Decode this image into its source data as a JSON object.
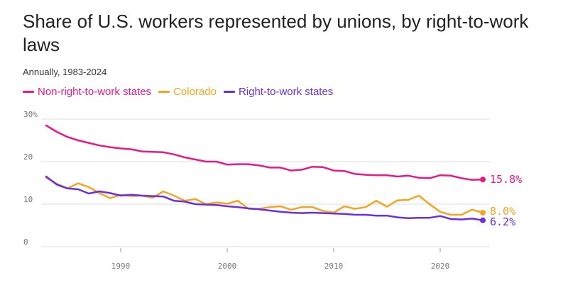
{
  "chart_data": {
    "type": "line",
    "title": "Share of U.S. workers represented by unions, by right-to-work laws",
    "subtitle": "Annually, 1983-2024",
    "xlabel": "",
    "ylabel": "",
    "xlim": [
      1983,
      2024
    ],
    "ylim": [
      0,
      30
    ],
    "y_ticks": [
      0,
      10,
      20,
      30
    ],
    "y_tick_labels": [
      "0",
      "10",
      "20",
      "30%"
    ],
    "x_ticks": [
      1990,
      2000,
      2010,
      2020
    ],
    "x_tick_labels": [
      "1990",
      "2000",
      "2010",
      "2020"
    ],
    "grid": true,
    "legend_position": "top-left",
    "x": [
      1983,
      1984,
      1985,
      1986,
      1987,
      1988,
      1989,
      1990,
      1991,
      1992,
      1993,
      1994,
      1995,
      1996,
      1997,
      1998,
      1999,
      2000,
      2001,
      2002,
      2003,
      2004,
      2005,
      2006,
      2007,
      2008,
      2009,
      2010,
      2011,
      2012,
      2013,
      2014,
      2015,
      2016,
      2017,
      2018,
      2019,
      2020,
      2021,
      2022,
      2023,
      2024
    ],
    "series": [
      {
        "name": "Non-right-to-work states",
        "color": "#e8188a",
        "end_label": "15.8%",
        "values": [
          28.5,
          27.0,
          25.8,
          25.0,
          24.4,
          23.8,
          23.4,
          23.1,
          22.9,
          22.4,
          22.3,
          22.2,
          21.7,
          21.0,
          20.5,
          20.0,
          20.0,
          19.3,
          19.4,
          19.4,
          19.1,
          18.6,
          18.6,
          17.9,
          18.1,
          18.8,
          18.7,
          17.9,
          17.8,
          17.1,
          16.9,
          16.8,
          16.8,
          16.5,
          16.7,
          16.2,
          16.1,
          16.8,
          16.7,
          16.1,
          15.7,
          15.8
        ]
      },
      {
        "name": "Colorado",
        "color": "#f4a41f",
        "end_label": "8.0%",
        "values": [
          16.2,
          14.8,
          13.7,
          14.9,
          14.0,
          12.6,
          11.4,
          12.2,
          11.9,
          12.0,
          11.5,
          13.0,
          12.0,
          10.8,
          11.2,
          10.0,
          10.4,
          10.1,
          10.8,
          8.9,
          8.9,
          9.3,
          9.5,
          8.7,
          9.3,
          9.3,
          8.4,
          8.0,
          9.5,
          8.9,
          9.3,
          10.8,
          9.4,
          10.9,
          11.0,
          12.0,
          10.0,
          8.2,
          7.5,
          7.5,
          8.7,
          8.0
        ]
      },
      {
        "name": "Right-to-work states",
        "color": "#6b2ee3",
        "end_label": "6.2%",
        "values": [
          16.5,
          14.6,
          13.7,
          13.5,
          12.5,
          13.0,
          12.6,
          12.0,
          12.2,
          12.0,
          11.9,
          11.8,
          10.8,
          10.6,
          10.0,
          9.9,
          9.8,
          9.5,
          9.3,
          9.0,
          8.8,
          8.5,
          8.2,
          8.0,
          7.9,
          8.0,
          7.9,
          7.8,
          7.7,
          7.5,
          7.5,
          7.3,
          7.3,
          6.9,
          6.7,
          6.8,
          6.8,
          7.2,
          6.5,
          6.4,
          6.6,
          6.2
        ]
      }
    ]
  }
}
